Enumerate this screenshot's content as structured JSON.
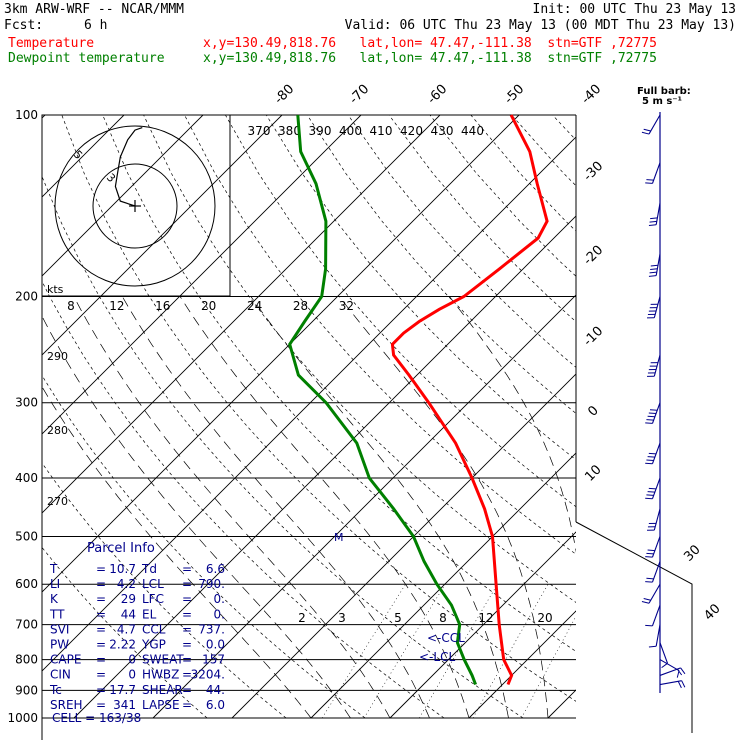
{
  "header": {
    "model": "3km ARW-WRF -- NCAR/MMM",
    "init": "Init: 00 UTC Thu 23 May 13",
    "fcst_label": "Fcst:",
    "fcst_value": "6 h",
    "valid": "Valid: 06 UTC Thu 23 May 13 (00 MDT Thu 23 May 13)",
    "temperature_label": "Temperature",
    "temperature_loc": "x,y=130.49,818.76   lat,lon= 47.47,-111.38  stn=GTF ,72775",
    "dewpoint_label": "Dewpoint temperature",
    "dewpoint_loc": "x,y=130.49,818.76   lat,lon= 47.47,-111.38  stn=GTF ,72775"
  },
  "colors": {
    "temperature": "#ff0000",
    "dewpoint": "#008000",
    "wind": "#00008b",
    "grid": "#000000"
  },
  "barb_legend": {
    "line1": "Full barb:",
    "line2": "5 m s⁻¹"
  },
  "hodograph": {
    "unit": "kts",
    "ring_labels": [
      "5",
      "3"
    ]
  },
  "parcel_info": {
    "title": "Parcel Info",
    "rows": [
      {
        "k1": "T",
        "v1": "10.7",
        "k2": "Td",
        "v2": "6.6"
      },
      {
        "k1": "LI",
        "v1": "4.2",
        "k2": "LCL",
        "v2": "790."
      },
      {
        "k1": "K",
        "v1": "29",
        "k2": "LFC",
        "v2": "0."
      },
      {
        "k1": "TT",
        "v1": "44",
        "k2": "EL",
        "v2": "0."
      },
      {
        "k1": "SVI",
        "v1": "4.7",
        "k2": "CCL",
        "v2": "737."
      },
      {
        "k1": "PW",
        "v1": "2.22",
        "k2": "YGP",
        "v2": "0.0"
      },
      {
        "k1": "CAPE",
        "v1": "0",
        "k2": "SWEAT",
        "v2": "157"
      },
      {
        "k1": "CIN",
        "v1": "0",
        "k2": "HWBZ",
        "v2": "3204."
      },
      {
        "k1": "Tc",
        "v1": "17.7",
        "k2": "SHEAR",
        "v2": "44."
      },
      {
        "k1": "SREH",
        "v1": "341",
        "k2": "LAPSE",
        "v2": "6.0"
      }
    ],
    "cell": "CELL = 163/38"
  },
  "level_markers": {
    "ccl": "<-CCL",
    "lcl": "<-LCL",
    "m": "M"
  },
  "chart_data": {
    "type": "line",
    "y_axis": {
      "scale": "log-pressure",
      "range": [
        1000,
        100
      ],
      "ticks": [
        100,
        200,
        300,
        400,
        500,
        600,
        700,
        800,
        900,
        1000
      ]
    },
    "temperature_ticks": [
      {
        "label": "-80",
        "value": -80
      },
      {
        "label": "-70",
        "value": -70
      },
      {
        "label": "-60",
        "value": -60
      },
      {
        "label": "-50",
        "value": -50
      },
      {
        "label": "-40",
        "value": -40
      },
      {
        "label": "-30",
        "value": -30
      },
      {
        "label": "-20",
        "value": -20
      },
      {
        "label": "-10",
        "value": -10
      },
      {
        "label": "0",
        "value": 0
      },
      {
        "label": "10",
        "value": 10
      },
      {
        "label": "30",
        "value": 30
      },
      {
        "label": "40",
        "value": 40
      }
    ],
    "theta_labels": [
      "370",
      "380",
      "390",
      "400",
      "410",
      "420",
      "430",
      "440"
    ],
    "mixing_ratio_labels": [
      "2",
      "3",
      "5",
      "8",
      "12",
      "20"
    ],
    "thetae_labels": [
      "290",
      "280",
      "270"
    ],
    "hodo_speed_labels": [
      "8",
      "12",
      "16",
      "20",
      "24",
      "28",
      "32"
    ],
    "series": [
      {
        "name": "Temperature",
        "points": [
          {
            "p": 880,
            "t": 10.7
          },
          {
            "p": 850,
            "t": 10.0
          },
          {
            "p": 800,
            "t": 7.0
          },
          {
            "p": 700,
            "t": 2.0
          },
          {
            "p": 600,
            "t": -3.5
          },
          {
            "p": 500,
            "t": -10.0
          },
          {
            "p": 450,
            "t": -14.5
          },
          {
            "p": 400,
            "t": -20.0
          },
          {
            "p": 350,
            "t": -26.5
          },
          {
            "p": 300,
            "t": -35.0
          },
          {
            "p": 270,
            "t": -41.0
          },
          {
            "p": 250,
            "t": -45.5
          },
          {
            "p": 240,
            "t": -47.0
          },
          {
            "p": 230,
            "t": -47.0
          },
          {
            "p": 220,
            "t": -46.5
          },
          {
            "p": 210,
            "t": -45.5
          },
          {
            "p": 200,
            "t": -44.0
          },
          {
            "p": 180,
            "t": -43.0
          },
          {
            "p": 160,
            "t": -42.0
          },
          {
            "p": 150,
            "t": -43.0
          },
          {
            "p": 130,
            "t": -49.0
          },
          {
            "p": 115,
            "t": -54.0
          },
          {
            "p": 100,
            "t": -61.0
          }
        ]
      },
      {
        "name": "Dewpoint temperature",
        "points": [
          {
            "p": 880,
            "t": 6.6
          },
          {
            "p": 850,
            "t": 5.0
          },
          {
            "p": 800,
            "t": 2.0
          },
          {
            "p": 750,
            "t": -1.0
          },
          {
            "p": 700,
            "t": -3.0
          },
          {
            "p": 650,
            "t": -6.5
          },
          {
            "p": 600,
            "t": -11.0
          },
          {
            "p": 550,
            "t": -15.5
          },
          {
            "p": 500,
            "t": -20.0
          },
          {
            "p": 450,
            "t": -26.0
          },
          {
            "p": 400,
            "t": -33.0
          },
          {
            "p": 350,
            "t": -39.0
          },
          {
            "p": 300,
            "t": -48.0
          },
          {
            "p": 270,
            "t": -55.0
          },
          {
            "p": 240,
            "t": -60.0
          },
          {
            "p": 220,
            "t": -61.0
          },
          {
            "p": 200,
            "t": -62.0
          },
          {
            "p": 180,
            "t": -65.0
          },
          {
            "p": 150,
            "t": -71.0
          },
          {
            "p": 130,
            "t": -77.0
          },
          {
            "p": 115,
            "t": -83.0
          },
          {
            "p": 100,
            "t": -88.0
          }
        ]
      }
    ],
    "hodograph_trace": [
      {
        "u": 0,
        "v": 0
      },
      {
        "u": -6,
        "v": 2
      },
      {
        "u": -8,
        "v": 8
      },
      {
        "u": -7,
        "v": 14
      },
      {
        "u": -6,
        "v": 20
      },
      {
        "u": -3,
        "v": 27
      },
      {
        "u": 0,
        "v": 31
      },
      {
        "u": 3,
        "v": 32
      }
    ],
    "wind_profile": [
      {
        "p": 880,
        "dir": 80,
        "kts": 20
      },
      {
        "p": 850,
        "dir": 70,
        "kts": 15
      },
      {
        "p": 800,
        "dir": 120,
        "kts": 10
      },
      {
        "p": 750,
        "dir": 160,
        "kts": 10
      },
      {
        "p": 700,
        "dir": 190,
        "kts": 10
      },
      {
        "p": 650,
        "dir": 200,
        "kts": 10
      },
      {
        "p": 600,
        "dir": 210,
        "kts": 15
      },
      {
        "p": 550,
        "dir": 200,
        "kts": 20
      },
      {
        "p": 500,
        "dir": 200,
        "kts": 25
      },
      {
        "p": 450,
        "dir": 195,
        "kts": 30
      },
      {
        "p": 400,
        "dir": 200,
        "kts": 35
      },
      {
        "p": 350,
        "dir": 200,
        "kts": 40
      },
      {
        "p": 300,
        "dir": 200,
        "kts": 45
      },
      {
        "p": 250,
        "dir": 195,
        "kts": 50
      },
      {
        "p": 200,
        "dir": 195,
        "kts": 45
      },
      {
        "p": 170,
        "dir": 190,
        "kts": 35
      },
      {
        "p": 140,
        "dir": 190,
        "kts": 25
      },
      {
        "p": 120,
        "dir": 200,
        "kts": 20
      },
      {
        "p": 100,
        "dir": 210,
        "kts": 15
      }
    ]
  }
}
